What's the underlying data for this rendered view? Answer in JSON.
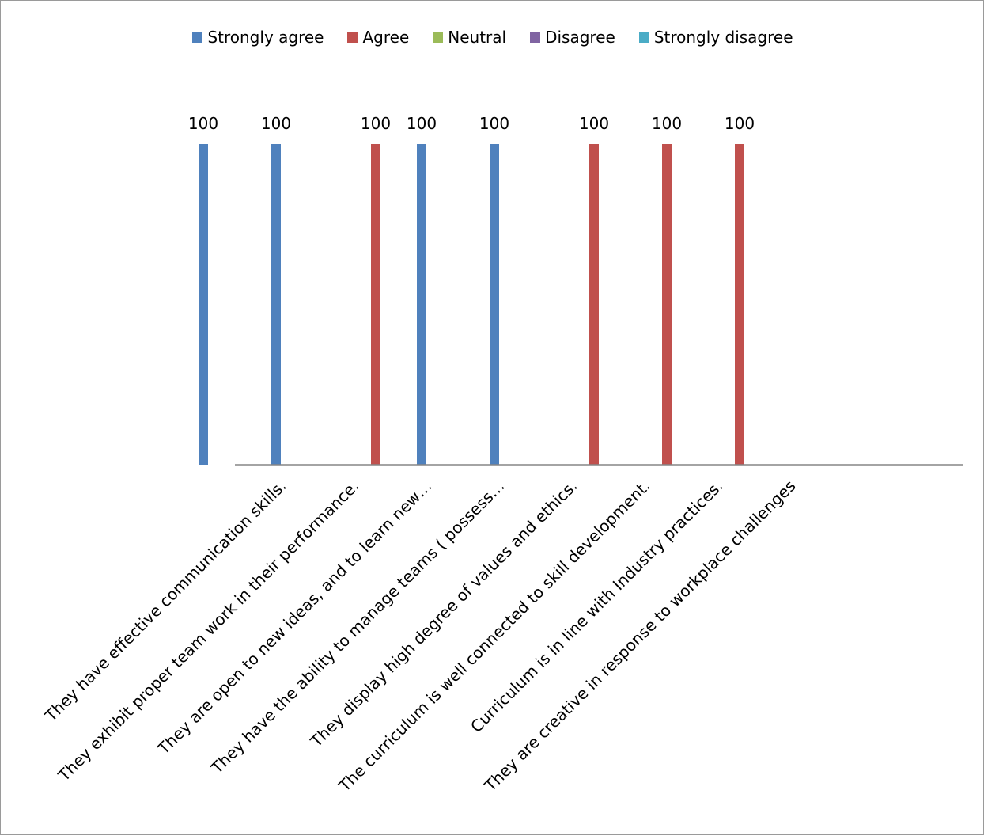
{
  "chart_data": {
    "type": "bar",
    "categories": [
      "They have effective communication skills.",
      "They exhibit proper team work in their performance.",
      "They are open to new ideas, and to learn new…",
      "They have the ability to manage teams ( possess…",
      "They display high degree of values and ethics.",
      "The curriculum is well connected to skill development.",
      "Curriculum is in line with Industry practices.",
      "They are creative in response to workplace challenges"
    ],
    "series": [
      {
        "name": "Strongly agree",
        "color": "#4f81bd",
        "values": [
          100,
          100,
          null,
          100,
          100,
          null,
          null,
          null
        ]
      },
      {
        "name": "Agree",
        "color": "#c0504d",
        "values": [
          null,
          null,
          100,
          null,
          null,
          100,
          100,
          100
        ]
      },
      {
        "name": "Neutral",
        "color": "#9bbb59",
        "values": [
          null,
          null,
          null,
          null,
          null,
          null,
          null,
          null
        ]
      },
      {
        "name": "Disagree",
        "color": "#8064a2",
        "values": [
          null,
          null,
          null,
          null,
          null,
          null,
          null,
          null
        ]
      },
      {
        "name": "Strongly disagree",
        "color": "#4bacc6",
        "values": [
          null,
          null,
          null,
          null,
          null,
          null,
          null,
          null
        ]
      }
    ],
    "data_labels": [
      "100",
      "100",
      "100",
      "100",
      "100",
      "100",
      "100",
      "100"
    ],
    "ylim": [
      0,
      100
    ],
    "legend_position": "top",
    "grid": false,
    "axis_color": "#868686"
  }
}
